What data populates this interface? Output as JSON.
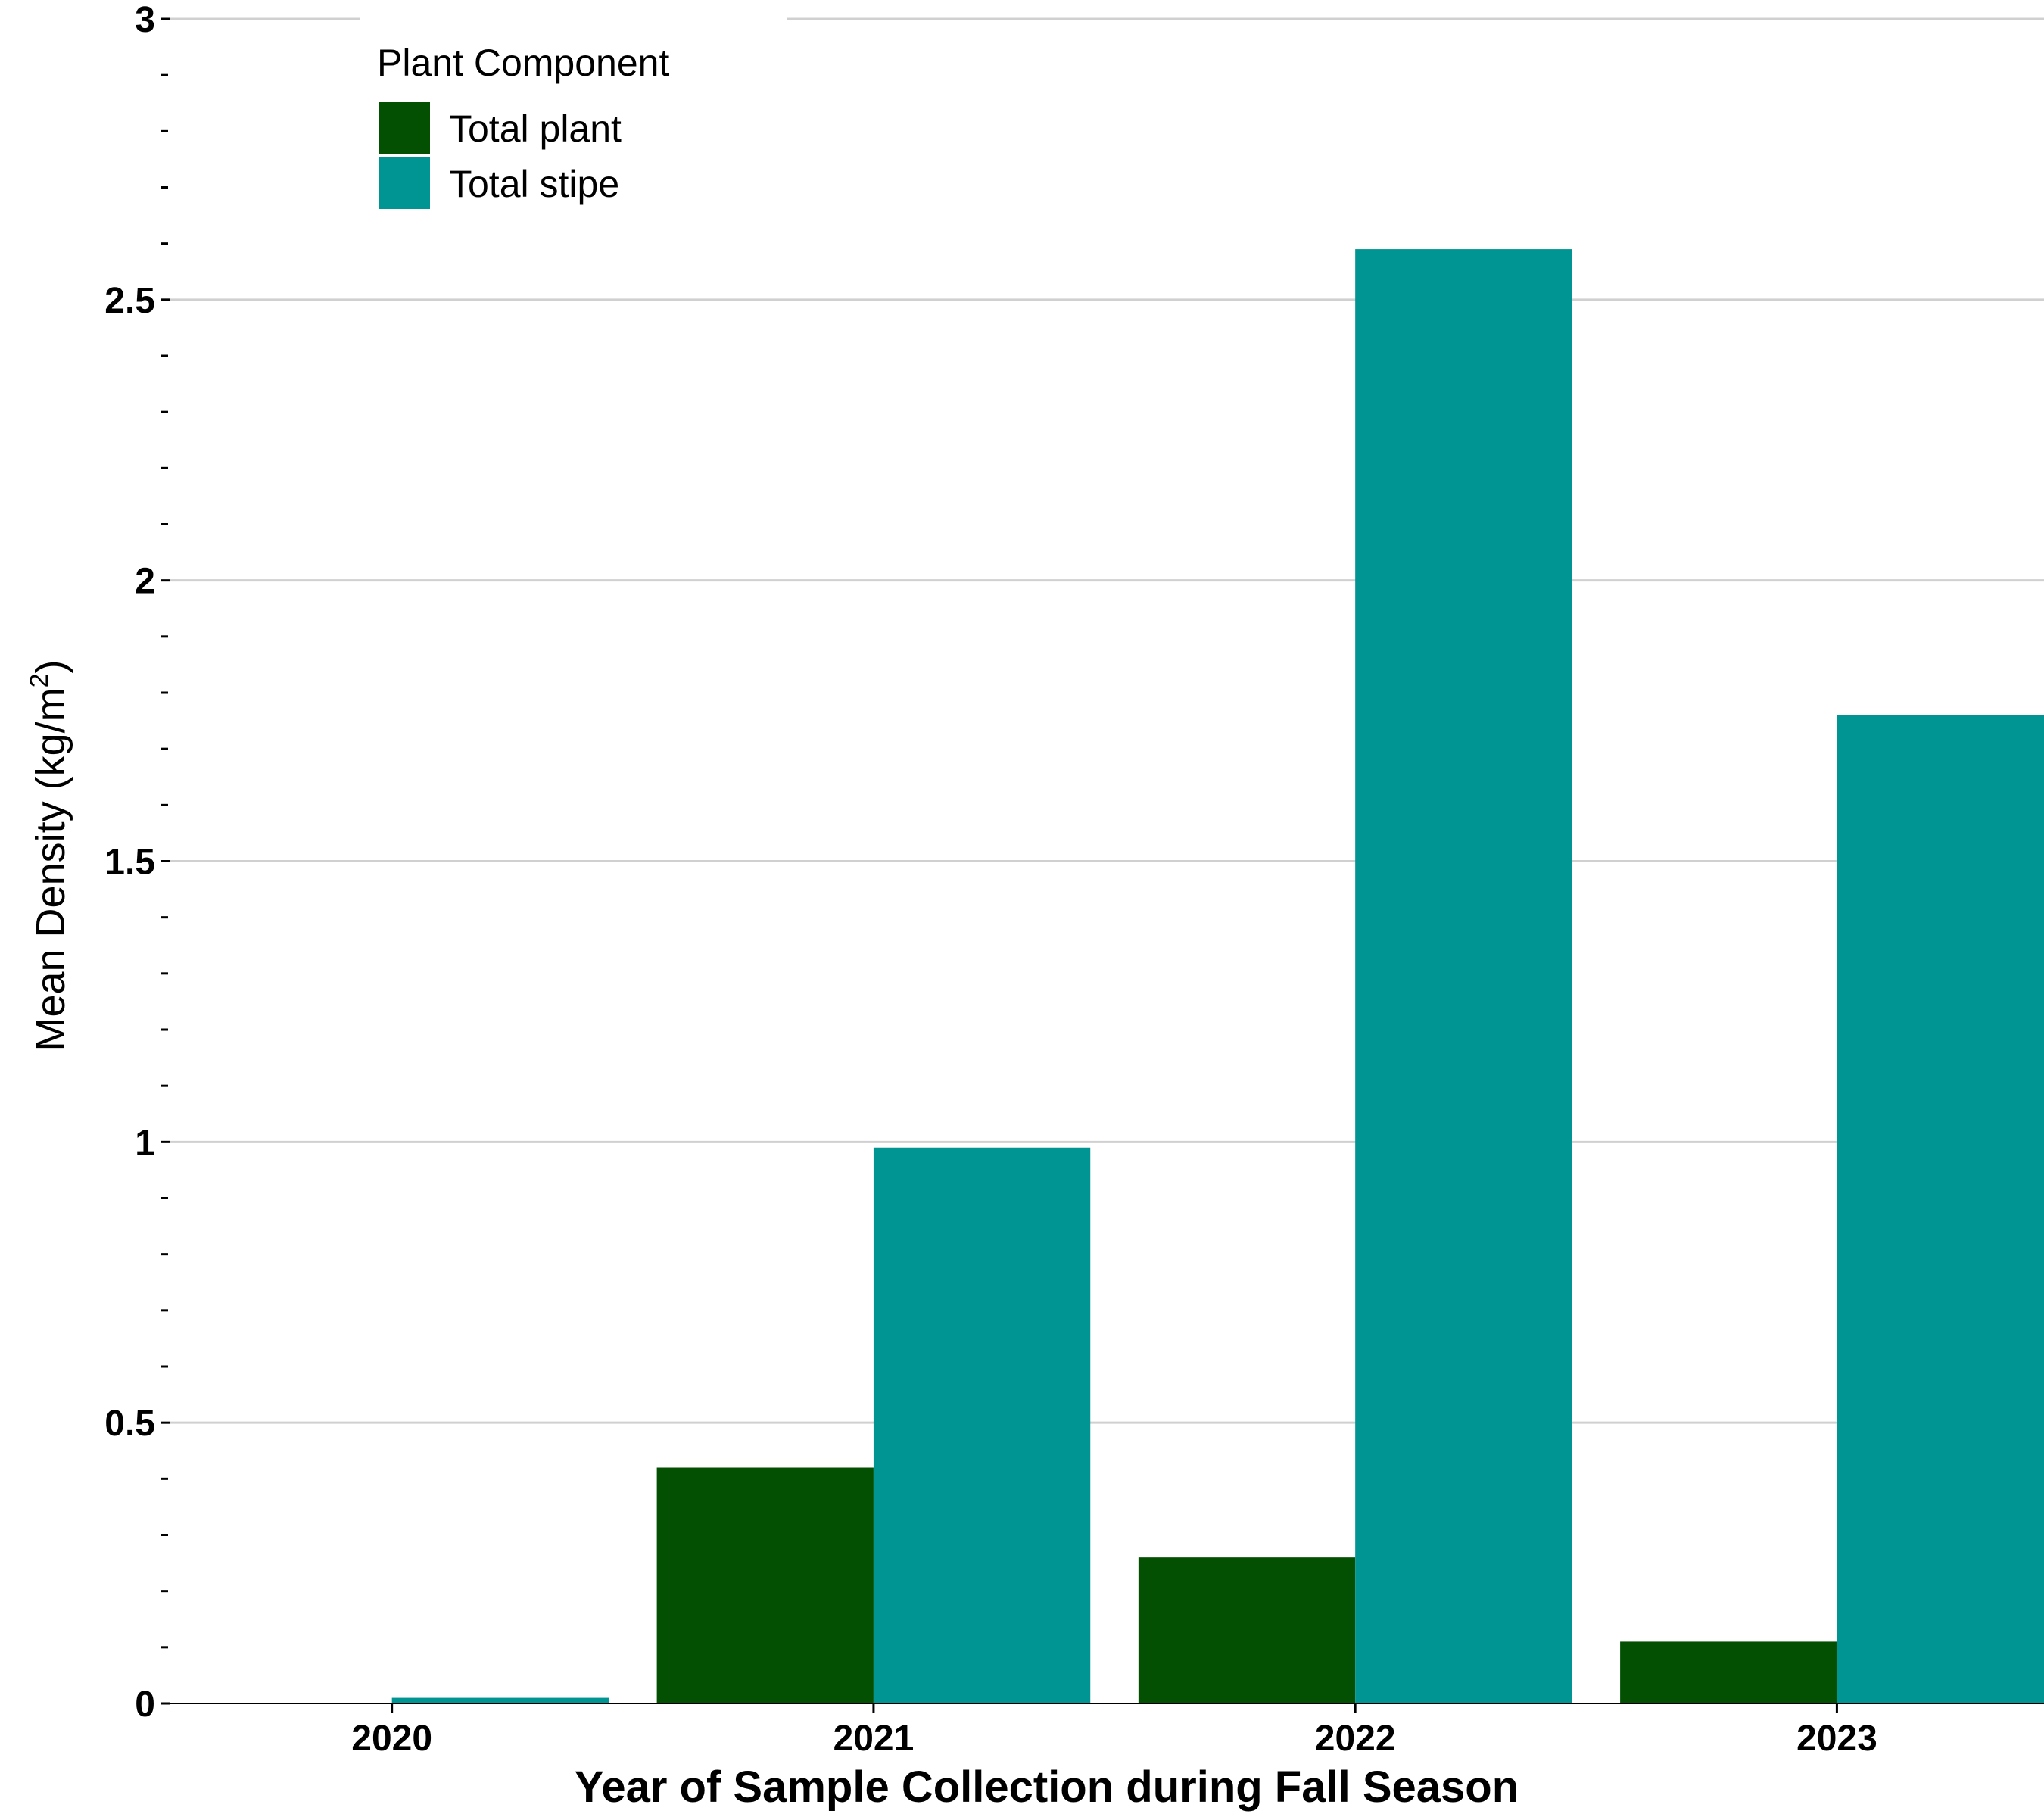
{
  "chart_data": {
    "type": "bar",
    "categories": [
      "2020",
      "2021",
      "2022",
      "2023"
    ],
    "series": [
      {
        "name": "Total plant",
        "color": "#035003",
        "values": [
          0.0,
          0.42,
          0.26,
          0.11
        ]
      },
      {
        "name": "Total stipe",
        "color": "#009593",
        "values": [
          0.01,
          0.99,
          2.59,
          1.76
        ]
      }
    ],
    "xlabel": "Year of Sample Collection during Fall Season",
    "ylabel": "Mean Density (kg/m",
    "ylabel_superscript": "2",
    "ylabel_close": ")",
    "ylim": [
      0,
      3
    ],
    "y_ticks": [
      {
        "value": 0,
        "label": "0"
      },
      {
        "value": 0.5,
        "label": "0.5"
      },
      {
        "value": 1,
        "label": "1"
      },
      {
        "value": 1.5,
        "label": "1.5"
      },
      {
        "value": 2,
        "label": "2"
      },
      {
        "value": 2.5,
        "label": "2.5"
      },
      {
        "value": 3,
        "label": "3"
      }
    ],
    "minor_tick_step": 0.1,
    "grid": true,
    "legend": {
      "title": "Plant Component",
      "position": "top-left"
    }
  }
}
